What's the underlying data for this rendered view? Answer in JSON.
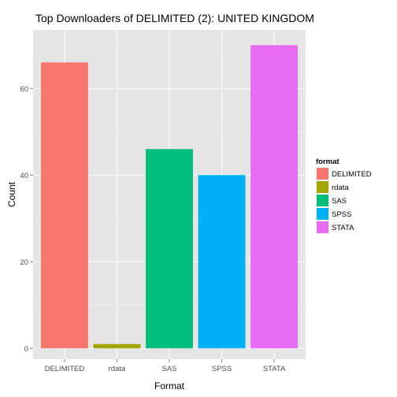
{
  "chart_data": {
    "type": "bar",
    "title": "Top Downloaders of DELIMITED (2):  UNITED KINGDOM",
    "xlabel": "Format",
    "ylabel": "Count",
    "categories": [
      "DELIMITED",
      "rdata",
      "SAS",
      "SPSS",
      "STATA"
    ],
    "values": [
      66,
      1,
      46,
      40,
      70
    ],
    "colors": [
      "#F8766D",
      "#A3A500",
      "#00BF7D",
      "#00B0F6",
      "#E76BF3"
    ],
    "ylim": [
      -2.5,
      73.5
    ],
    "yticks": [
      0,
      20,
      40,
      60
    ],
    "grid": true,
    "legend": {
      "title": "format",
      "placement": "right",
      "entries": [
        "DELIMITED",
        "rdata",
        "SAS",
        "SPSS",
        "STATA"
      ]
    }
  }
}
